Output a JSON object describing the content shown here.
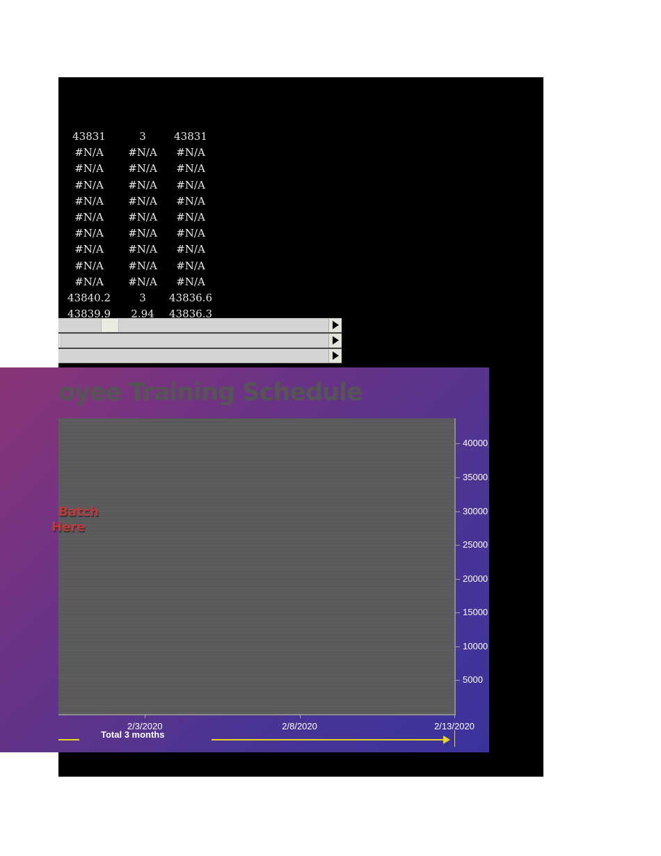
{
  "sheet": {
    "rows": [
      [
        "43831",
        "3",
        "43831"
      ],
      [
        "#N/A",
        "#N/A",
        "#N/A"
      ],
      [
        "#N/A",
        "#N/A",
        "#N/A"
      ],
      [
        "#N/A",
        "#N/A",
        "#N/A"
      ],
      [
        "#N/A",
        "#N/A",
        "#N/A"
      ],
      [
        "#N/A",
        "#N/A",
        "#N/A"
      ],
      [
        "#N/A",
        "#N/A",
        "#N/A"
      ],
      [
        "#N/A",
        "#N/A",
        "#N/A"
      ],
      [
        "#N/A",
        "#N/A",
        "#N/A"
      ],
      [
        "#N/A",
        "#N/A",
        "#N/A"
      ],
      [
        "43840.2",
        "3",
        "43836.6"
      ],
      [
        "43839.9",
        "2.94",
        "43836.3"
      ]
    ],
    "scrollbars": [
      {
        "thumb_position": 0.17
      },
      {
        "thumb_position": 0.0
      },
      {
        "thumb_position": null
      }
    ]
  },
  "chart_data": {
    "type": "bar",
    "title": "oyee Training Schedule",
    "annotation": "Batch\nHere",
    "annotation_lines": [
      "Batch",
      "Here"
    ],
    "legend": {
      "label": "Total 3 months",
      "color": "#e8d820"
    },
    "x_tick_labels": [
      "2/3/2020",
      "2/8/2020",
      "2/13/2020"
    ],
    "xlim": [
      "2020-01-31",
      "2020-02-13"
    ],
    "y_tick_labels": [
      "40000",
      "35000",
      "30000",
      "25000",
      "20000",
      "15000",
      "10000",
      "5000"
    ],
    "ylim": [
      0,
      43750
    ],
    "y_axis_side": "right",
    "series": [],
    "grid": false,
    "colors": {
      "plot_area": "#5b5a5d",
      "annotation": "#c0393b",
      "title": "#555555"
    }
  }
}
